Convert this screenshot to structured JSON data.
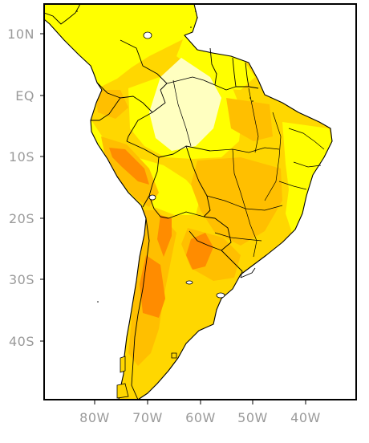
{
  "map": {
    "lat_labels": [
      "10N",
      "EQ",
      "10S",
      "20S",
      "30S",
      "40S"
    ],
    "lon_labels": [
      "80W",
      "70W",
      "60W",
      "50W",
      "40W"
    ],
    "colors": {
      "ocean": "#ffffff",
      "pale_yellow": "#ffffc0",
      "yellow": "#ffff00",
      "light_orange": "#ffd700",
      "orange": "#ffbf00",
      "dark_orange": "#ff8c00",
      "border": "#000000"
    }
  }
}
